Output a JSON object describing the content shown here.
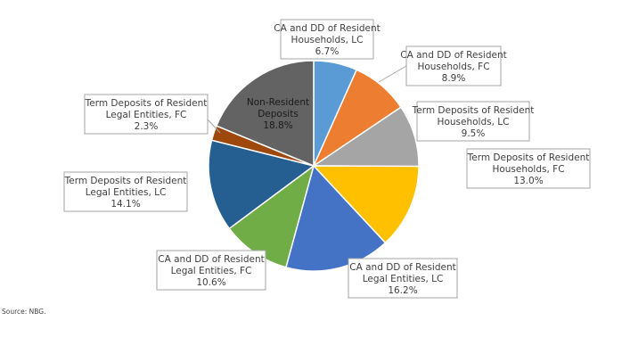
{
  "chart_data": {
    "type": "pie",
    "start_angle_deg": 0,
    "direction": "clockwise",
    "slices": [
      {
        "label_lines": [
          "CA and DD of Resident",
          "Households, LC"
        ],
        "value_text": "6.7%",
        "value": 6.7,
        "color": "#5b9bd5"
      },
      {
        "label_lines": [
          "CA and DD of Resident",
          "Households, FC"
        ],
        "value_text": "8.9%",
        "value": 8.9,
        "color": "#ed7d31"
      },
      {
        "label_lines": [
          "Term Deposits of Resident",
          "Households, LC"
        ],
        "value_text": "9.5%",
        "value": 9.5,
        "color": "#a5a5a5"
      },
      {
        "label_lines": [
          "Term Deposits of Resident",
          "Households, FC"
        ],
        "value_text": "13.0%",
        "value": 13.0,
        "color": "#ffc000"
      },
      {
        "label_lines": [
          "CA and DD of Resident",
          "Legal Entities, LC"
        ],
        "value_text": "16.2%",
        "value": 16.2,
        "color": "#4472c4"
      },
      {
        "label_lines": [
          "CA and DD of Resident",
          "Legal Entities, FC"
        ],
        "value_text": "10.6%",
        "value": 10.6,
        "color": "#70ad47"
      },
      {
        "label_lines": [
          "Term Deposits of Resident",
          "Legal Entities, LC"
        ],
        "value_text": "14.1%",
        "value": 14.1,
        "color": "#255e91"
      },
      {
        "label_lines": [
          "Term Deposits of Resident",
          "Legal Entities, FC"
        ],
        "value_text": "2.3%",
        "value": 2.3,
        "color": "#9e480e"
      },
      {
        "label_lines": [
          "Non-Resident",
          "Deposits"
        ],
        "value_text": "18.8%",
        "value": 18.8,
        "color": "#636363"
      }
    ]
  },
  "source_note": "Source: NBG."
}
